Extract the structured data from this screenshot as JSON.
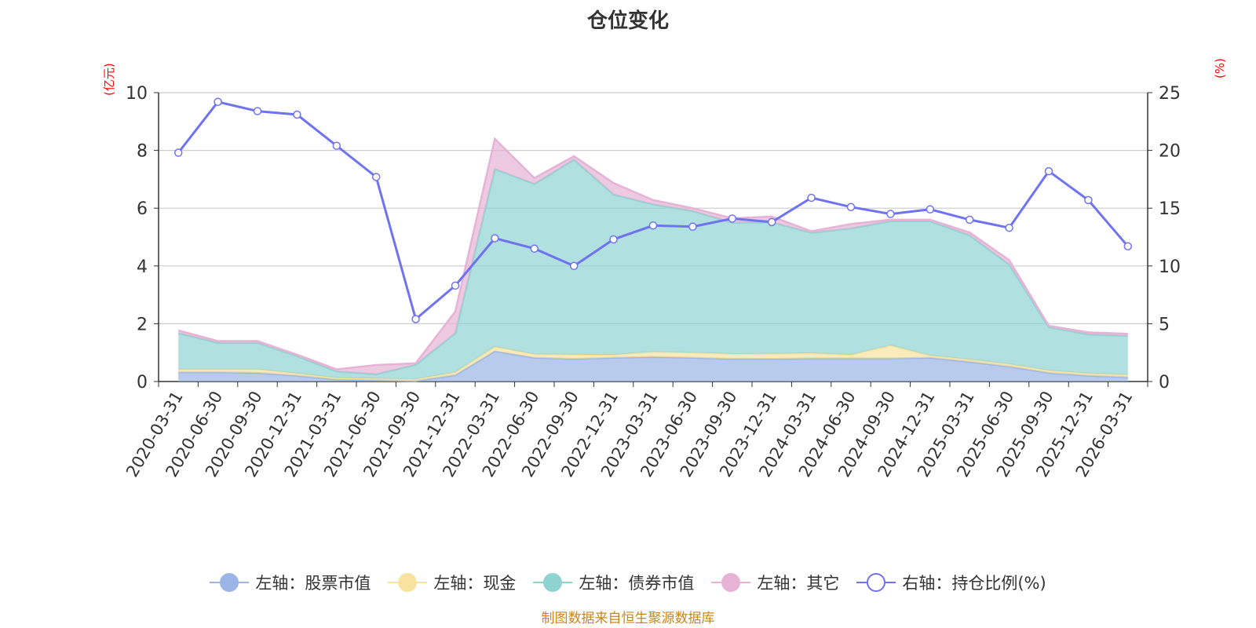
{
  "title": "仓位变化",
  "source_note": "制图数据来自恒生聚源数据库",
  "unit_left": "(亿元)",
  "unit_right": "(%)",
  "colors": {
    "stock": "#9bb5e6",
    "cash": "#f7e2a0",
    "bond": "#8fd3d1",
    "other": "#e6b3d6",
    "ratio": "#6f73f2"
  },
  "legend": [
    {
      "key": "stock",
      "label": "左轴：股票市值"
    },
    {
      "key": "cash",
      "label": "左轴：现金"
    },
    {
      "key": "bond",
      "label": "左轴：债券市值"
    },
    {
      "key": "other",
      "label": "左轴：其它"
    },
    {
      "key": "ratio",
      "label": "右轴：持仓比例(%)"
    }
  ],
  "chart_data": {
    "type": "area",
    "title": "仓位变化",
    "stacked": true,
    "categories": [
      "2020-03-31",
      "2020-06-30",
      "2020-09-30",
      "2020-12-31",
      "2021-03-31",
      "2021-06-30",
      "2021-09-30",
      "2021-12-31",
      "2022-03-31",
      "2022-06-30",
      "2022-09-30",
      "2022-12-31",
      "2023-03-31",
      "2023-06-30",
      "2023-09-30",
      "2023-12-31",
      "2024-03-31",
      "2024-06-30",
      "2024-09-30",
      "2024-12-31",
      "2025-03-31",
      "2025-06-30",
      "2025-09-30",
      "2025-12-31",
      "2026-03-31"
    ],
    "left_axis": {
      "unit": "亿元",
      "ylim": [
        0,
        10
      ],
      "ticks": [
        0,
        2,
        4,
        6,
        8,
        10
      ]
    },
    "right_axis": {
      "unit": "%",
      "ylim": [
        0,
        25
      ],
      "ticks": [
        0,
        5,
        10,
        15,
        20,
        25
      ]
    },
    "series": [
      {
        "key": "stock",
        "name": "左轴：股票市值",
        "axis": "left",
        "values": [
          0.32,
          0.32,
          0.3,
          0.2,
          0.07,
          0.05,
          0.02,
          0.22,
          1.05,
          0.82,
          0.78,
          0.82,
          0.85,
          0.82,
          0.78,
          0.78,
          0.8,
          0.8,
          0.8,
          0.82,
          0.68,
          0.52,
          0.3,
          0.2,
          0.15
        ]
      },
      {
        "key": "cash",
        "name": "左轴：现金",
        "axis": "left",
        "values": [
          0.1,
          0.1,
          0.12,
          0.08,
          0.05,
          0.05,
          0.06,
          0.1,
          0.15,
          0.12,
          0.15,
          0.1,
          0.18,
          0.18,
          0.17,
          0.18,
          0.18,
          0.12,
          0.45,
          0.08,
          0.08,
          0.08,
          0.08,
          0.08,
          0.08
        ]
      },
      {
        "key": "bond",
        "name": "左轴：债券市值",
        "axis": "left",
        "values": [
          1.25,
          0.92,
          0.92,
          0.6,
          0.23,
          0.15,
          0.5,
          1.35,
          6.15,
          5.9,
          6.75,
          5.55,
          5.1,
          4.9,
          4.55,
          4.55,
          4.17,
          4.38,
          4.3,
          4.65,
          4.3,
          3.45,
          1.5,
          1.35,
          1.35
        ]
      },
      {
        "key": "other",
        "name": "左轴：其它",
        "axis": "left",
        "values": [
          0.1,
          0.06,
          0.06,
          0.05,
          0.07,
          0.32,
          0.05,
          0.75,
          1.05,
          0.2,
          0.12,
          0.4,
          0.15,
          0.1,
          0.15,
          0.2,
          0.05,
          0.15,
          0.05,
          0.05,
          0.1,
          0.15,
          0.05,
          0.07,
          0.07
        ]
      },
      {
        "key": "ratio",
        "name": "右轴：持仓比例(%)",
        "axis": "right",
        "type": "line",
        "values": [
          19.8,
          24.2,
          23.4,
          23.1,
          20.4,
          17.7,
          5.4,
          8.3,
          12.4,
          11.5,
          10.0,
          12.3,
          13.5,
          13.4,
          14.1,
          13.8,
          15.9,
          15.1,
          14.5,
          14.9,
          14.0,
          13.3,
          18.2,
          15.7,
          11.7
        ]
      }
    ]
  }
}
